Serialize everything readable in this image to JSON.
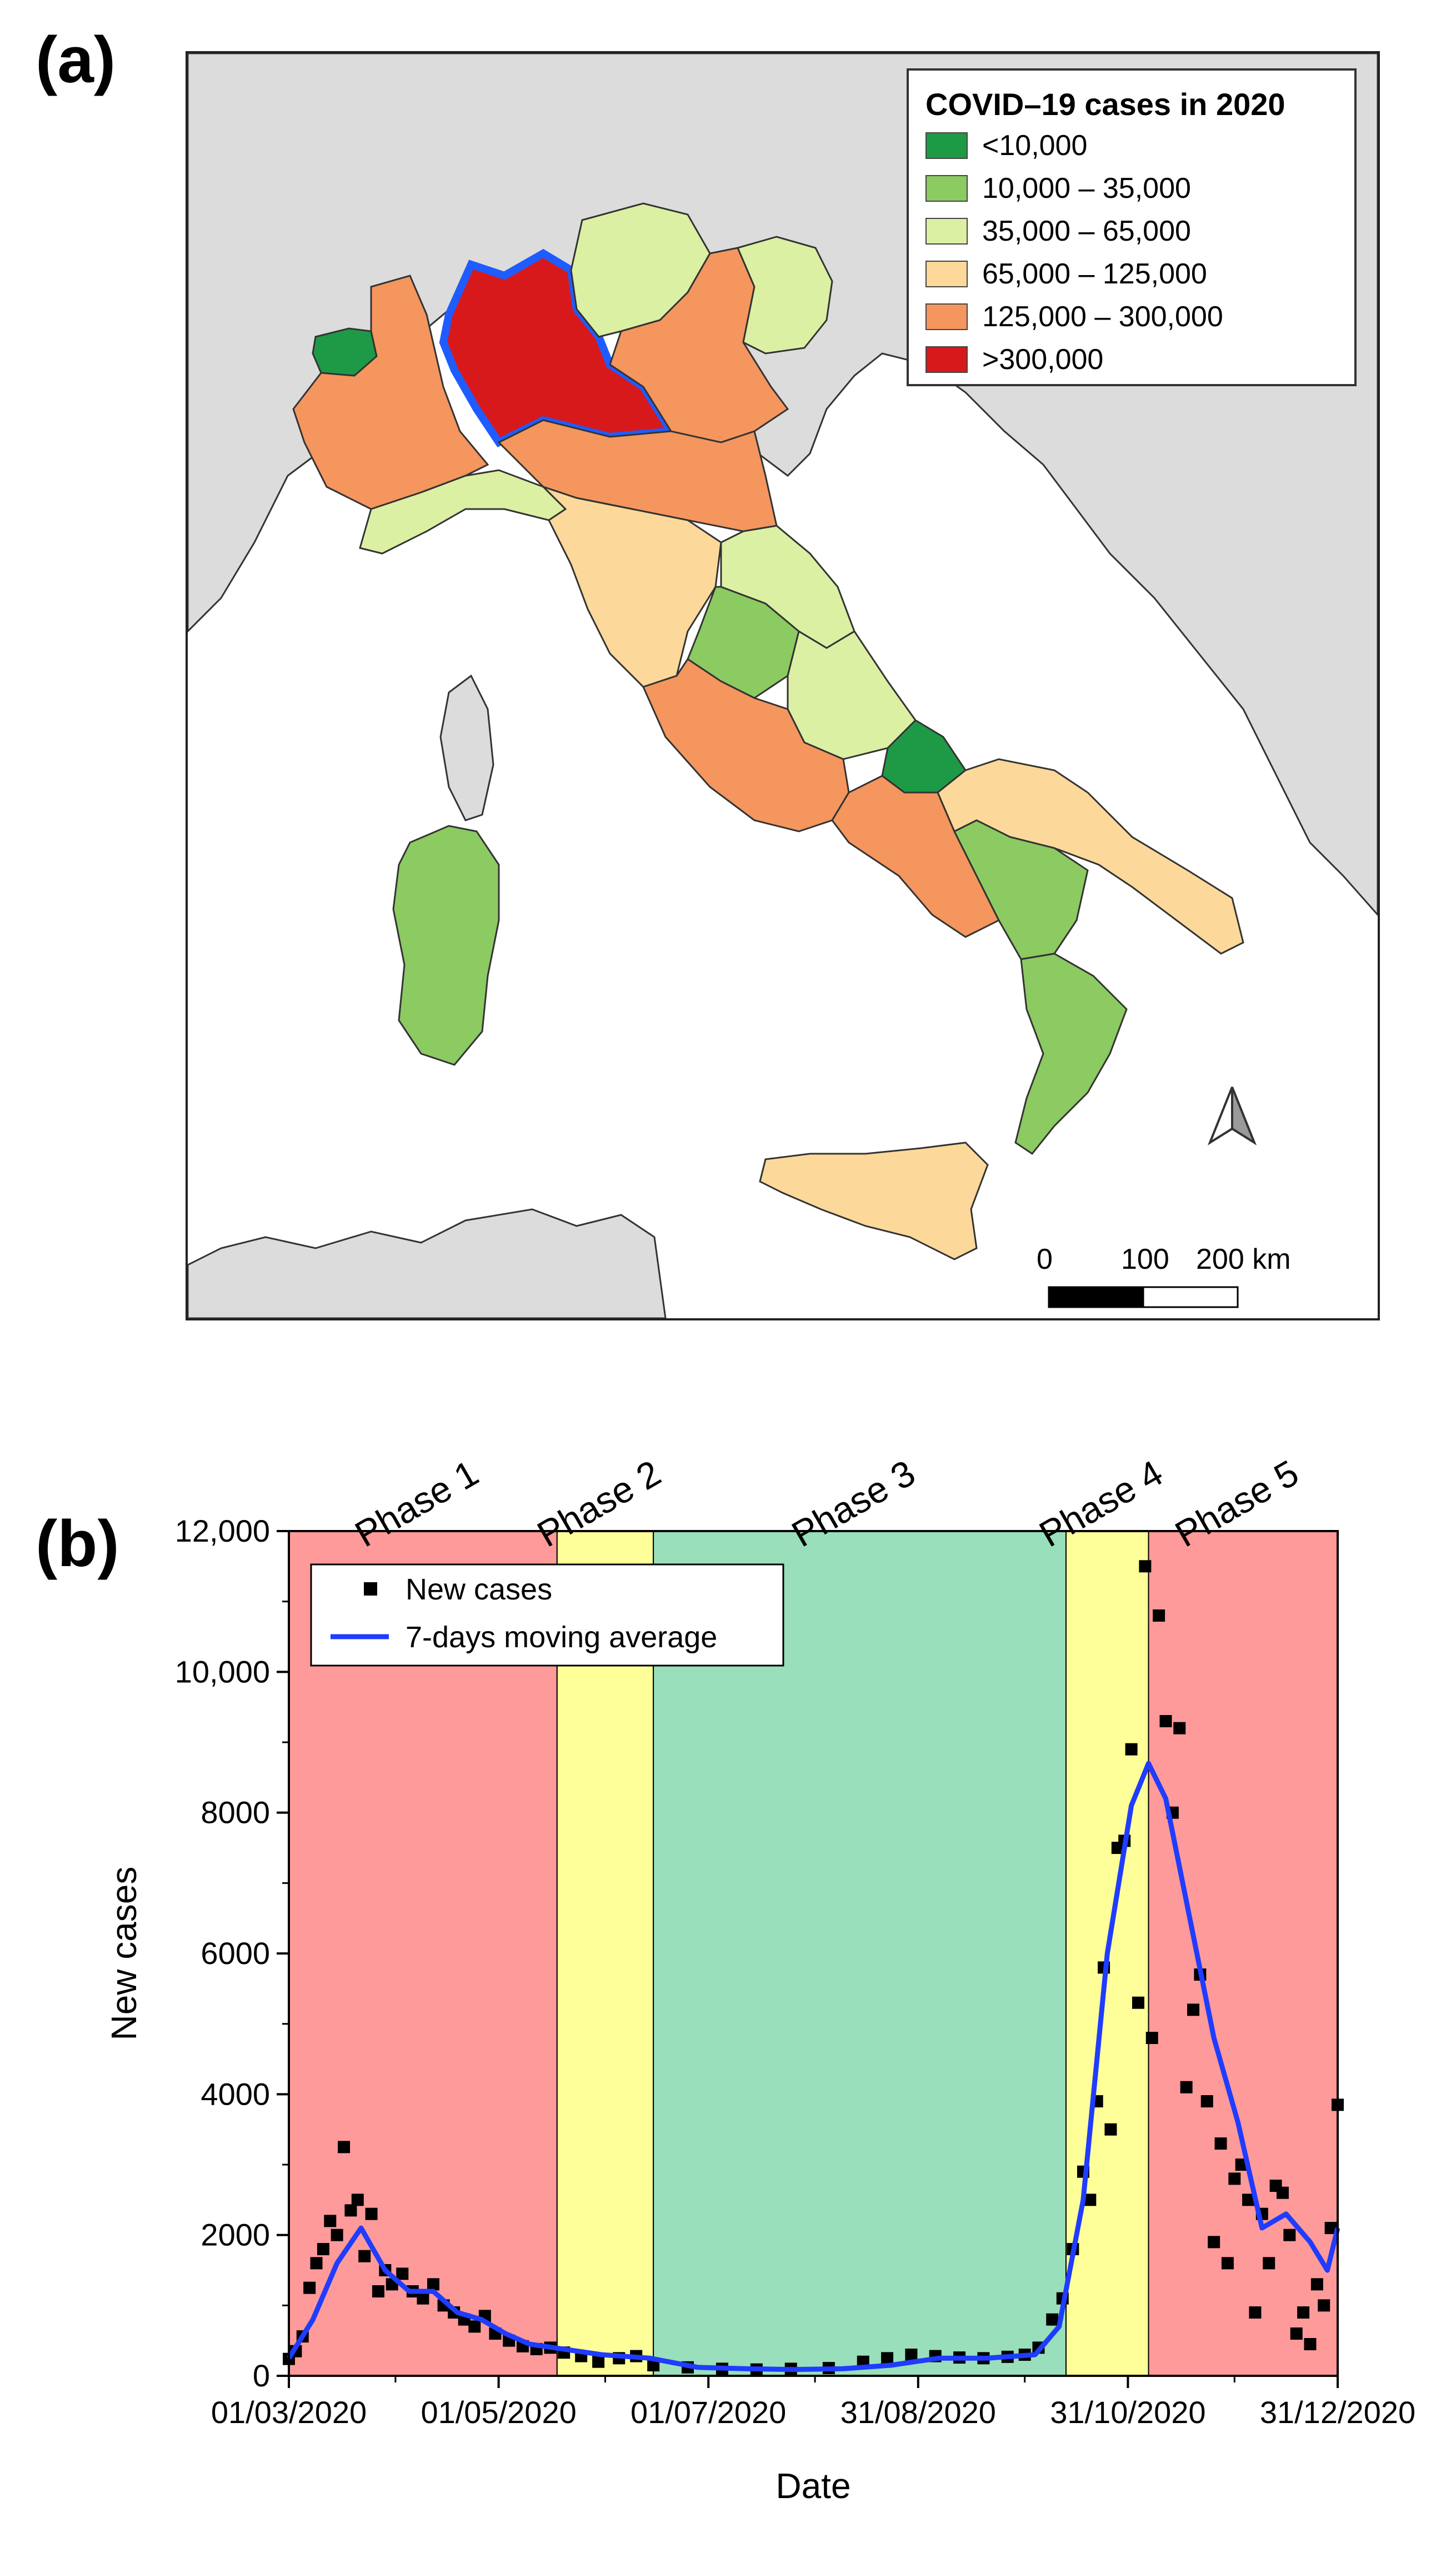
{
  "panel_a": {
    "letter": "(a)",
    "legend": {
      "title": "COVID–19 cases in 2020",
      "items": [
        {
          "label": "<10,000",
          "color": "#1e9a46"
        },
        {
          "label": "10,000 – 35,000",
          "color": "#8cca62"
        },
        {
          "label": "35,000 – 65,000",
          "color": "#dcf0a4"
        },
        {
          "label": "65,000 – 125,000",
          "color": "#fcd99a"
        },
        {
          "label": "125,000 – 300,000",
          "color": "#f4965e"
        },
        {
          "label": ">300,000",
          "color": "#d7191c"
        }
      ]
    },
    "highlight_color": "#1f5cff",
    "land_color": "#dcdcdc",
    "scale_bar": {
      "labels": [
        "0",
        "100",
        "200 km"
      ]
    },
    "north_arrow": "north-arrow-icon"
  },
  "panel_b": {
    "letter": "(b)",
    "phases": [
      {
        "label": "Phase 1",
        "start": "2020-03-01",
        "end": "2020-05-18",
        "color": "#ff9a9a"
      },
      {
        "label": "Phase 2",
        "start": "2020-05-18",
        "end": "2020-06-15",
        "color": "#ffff99"
      },
      {
        "label": "Phase 3",
        "start": "2020-06-15",
        "end": "2020-10-13",
        "color": "#99dfbb"
      },
      {
        "label": "Phase 4",
        "start": "2020-10-13",
        "end": "2020-11-06",
        "color": "#ffff99"
      },
      {
        "label": "Phase 5",
        "start": "2020-11-06",
        "end": "2020-12-31",
        "color": "#ff9a9a"
      }
    ],
    "legend": {
      "scatter": "New cases",
      "line": "7-days moving average"
    },
    "line_color": "#1f3cff"
  },
  "chart_data": {
    "type": "scatter",
    "xlabel": "Date",
    "ylabel": "New cases",
    "x_ticks": [
      "01/03/2020",
      "01/05/2020",
      "01/07/2020",
      "31/08/2020",
      "31/10/2020",
      "31/12/2020"
    ],
    "x_range": [
      "2020-03-01",
      "2020-12-31"
    ],
    "y_ticks": [
      "0",
      "2000",
      "4000",
      "6000",
      "8000",
      "10,000",
      "12,000"
    ],
    "ylim": [
      0,
      12000
    ],
    "series": [
      {
        "name": "New cases",
        "type": "scatter",
        "x": [
          "2020-03-01",
          "2020-03-03",
          "2020-03-05",
          "2020-03-07",
          "2020-03-09",
          "2020-03-11",
          "2020-03-13",
          "2020-03-15",
          "2020-03-17",
          "2020-03-19",
          "2020-03-21",
          "2020-03-23",
          "2020-03-25",
          "2020-03-27",
          "2020-03-29",
          "2020-03-31",
          "2020-04-03",
          "2020-04-06",
          "2020-04-09",
          "2020-04-12",
          "2020-04-15",
          "2020-04-18",
          "2020-04-21",
          "2020-04-24",
          "2020-04-27",
          "2020-04-30",
          "2020-05-04",
          "2020-05-08",
          "2020-05-12",
          "2020-05-16",
          "2020-05-20",
          "2020-05-25",
          "2020-05-30",
          "2020-06-05",
          "2020-06-10",
          "2020-06-15",
          "2020-06-25",
          "2020-07-05",
          "2020-07-15",
          "2020-07-25",
          "2020-08-05",
          "2020-08-15",
          "2020-08-22",
          "2020-08-29",
          "2020-09-05",
          "2020-09-12",
          "2020-09-19",
          "2020-09-26",
          "2020-10-01",
          "2020-10-05",
          "2020-10-09",
          "2020-10-12",
          "2020-10-15",
          "2020-10-18",
          "2020-10-20",
          "2020-10-22",
          "2020-10-24",
          "2020-10-26",
          "2020-10-28",
          "2020-10-30",
          "2020-11-01",
          "2020-11-03",
          "2020-11-05",
          "2020-11-07",
          "2020-11-09",
          "2020-11-11",
          "2020-11-13",
          "2020-11-15",
          "2020-11-17",
          "2020-11-19",
          "2020-11-21",
          "2020-11-23",
          "2020-11-25",
          "2020-11-27",
          "2020-11-29",
          "2020-12-01",
          "2020-12-03",
          "2020-12-05",
          "2020-12-07",
          "2020-12-09",
          "2020-12-11",
          "2020-12-13",
          "2020-12-15",
          "2020-12-17",
          "2020-12-19",
          "2020-12-21",
          "2020-12-23",
          "2020-12-25",
          "2020-12-27",
          "2020-12-29",
          "2020-12-31"
        ],
        "values": [
          240,
          350,
          560,
          1250,
          1600,
          1800,
          2200,
          2000,
          3250,
          2350,
          2500,
          1700,
          2300,
          1200,
          1500,
          1300,
          1450,
          1200,
          1100,
          1300,
          1000,
          900,
          800,
          700,
          850,
          600,
          500,
          420,
          380,
          400,
          330,
          280,
          200,
          250,
          280,
          150,
          120,
          100,
          90,
          100,
          110,
          200,
          250,
          300,
          280,
          260,
          250,
          270,
          300,
          400,
          800,
          1100,
          1800,
          2900,
          2500,
          3900,
          5800,
          3500,
          7500,
          7600,
          8900,
          5300,
          11500,
          4800,
          10800,
          9300,
          8000,
          9200,
          4100,
          5200,
          5700,
          3900,
          1900,
          3300,
          1600,
          2800,
          3000,
          2500,
          900,
          2300,
          1600,
          2700,
          2600,
          2000,
          600,
          900,
          450,
          1300,
          1000,
          2100,
          3850
        ]
      },
      {
        "name": "7-days moving average",
        "type": "line",
        "x": [
          "2020-03-01",
          "2020-03-08",
          "2020-03-15",
          "2020-03-22",
          "2020-03-29",
          "2020-04-05",
          "2020-04-12",
          "2020-04-19",
          "2020-04-26",
          "2020-05-03",
          "2020-05-10",
          "2020-05-17",
          "2020-05-31",
          "2020-06-14",
          "2020-06-28",
          "2020-07-12",
          "2020-07-26",
          "2020-08-09",
          "2020-08-23",
          "2020-09-06",
          "2020-09-20",
          "2020-10-04",
          "2020-10-11",
          "2020-10-18",
          "2020-10-25",
          "2020-11-01",
          "2020-11-06",
          "2020-11-11",
          "2020-11-18",
          "2020-11-25",
          "2020-12-02",
          "2020-12-09",
          "2020-12-16",
          "2020-12-23",
          "2020-12-28",
          "2020-12-31"
        ],
        "values": [
          250,
          800,
          1600,
          2100,
          1500,
          1200,
          1200,
          900,
          800,
          600,
          450,
          400,
          300,
          250,
          120,
          100,
          90,
          100,
          150,
          250,
          250,
          300,
          700,
          2500,
          6000,
          8100,
          8700,
          8200,
          6500,
          4800,
          3600,
          2100,
          2300,
          1900,
          1500,
          2100
        ]
      }
    ]
  }
}
